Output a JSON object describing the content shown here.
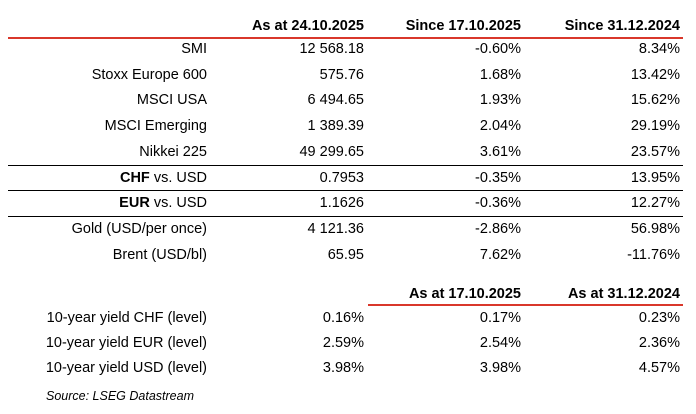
{
  "header": {
    "columns": [
      "As at 24.10.2025",
      "Since 17.10.2025",
      "Since 31.12.2024"
    ]
  },
  "groups": [
    {
      "rows": [
        {
          "label": "SMI",
          "values": [
            "12 568.18",
            "-0.60%",
            "8.34%"
          ]
        },
        {
          "label": "Stoxx Europe 600",
          "values": [
            "575.76",
            "1.68%",
            "13.42%"
          ]
        },
        {
          "label": "MSCI USA",
          "values": [
            "6 494.65",
            "1.93%",
            "15.62%"
          ]
        },
        {
          "label": "MSCI Emerging",
          "values": [
            "1 389.39",
            "2.04%",
            "29.19%"
          ]
        },
        {
          "label": "Nikkei 225",
          "values": [
            "49 299.65",
            "3.61%",
            "23.57%"
          ]
        }
      ]
    },
    {
      "rows": [
        {
          "label_bold": "CHF",
          "label": "vs. USD",
          "values": [
            "0.7953",
            "-0.35%",
            "13.95%"
          ]
        }
      ]
    },
    {
      "rows": [
        {
          "label_bold": "EUR",
          "label": "vs. USD",
          "values": [
            "1.1626",
            "-0.36%",
            "12.27%"
          ]
        }
      ]
    },
    {
      "rows": [
        {
          "label": "Gold (USD/per once)",
          "values": [
            "4 121.36",
            "-2.86%",
            "56.98%"
          ]
        },
        {
          "label": "Brent (USD/bl)",
          "values": [
            "65.95",
            "7.62%",
            "-11.76%"
          ]
        }
      ]
    }
  ],
  "yields": {
    "columns": [
      "As at 17.10.2025",
      "As at 31.12.2024"
    ],
    "rows": [
      {
        "label": "10-year yield CHF (level)",
        "values": [
          "0.16%",
          "0.17%",
          "0.23%"
        ]
      },
      {
        "label": "10-year yield EUR (level)",
        "values": [
          "2.59%",
          "2.54%",
          "2.36%"
        ]
      },
      {
        "label": "10-year yield USD (level)",
        "values": [
          "3.98%",
          "3.98%",
          "4.57%"
        ]
      }
    ]
  },
  "source": "Source: LSEG Datastream"
}
